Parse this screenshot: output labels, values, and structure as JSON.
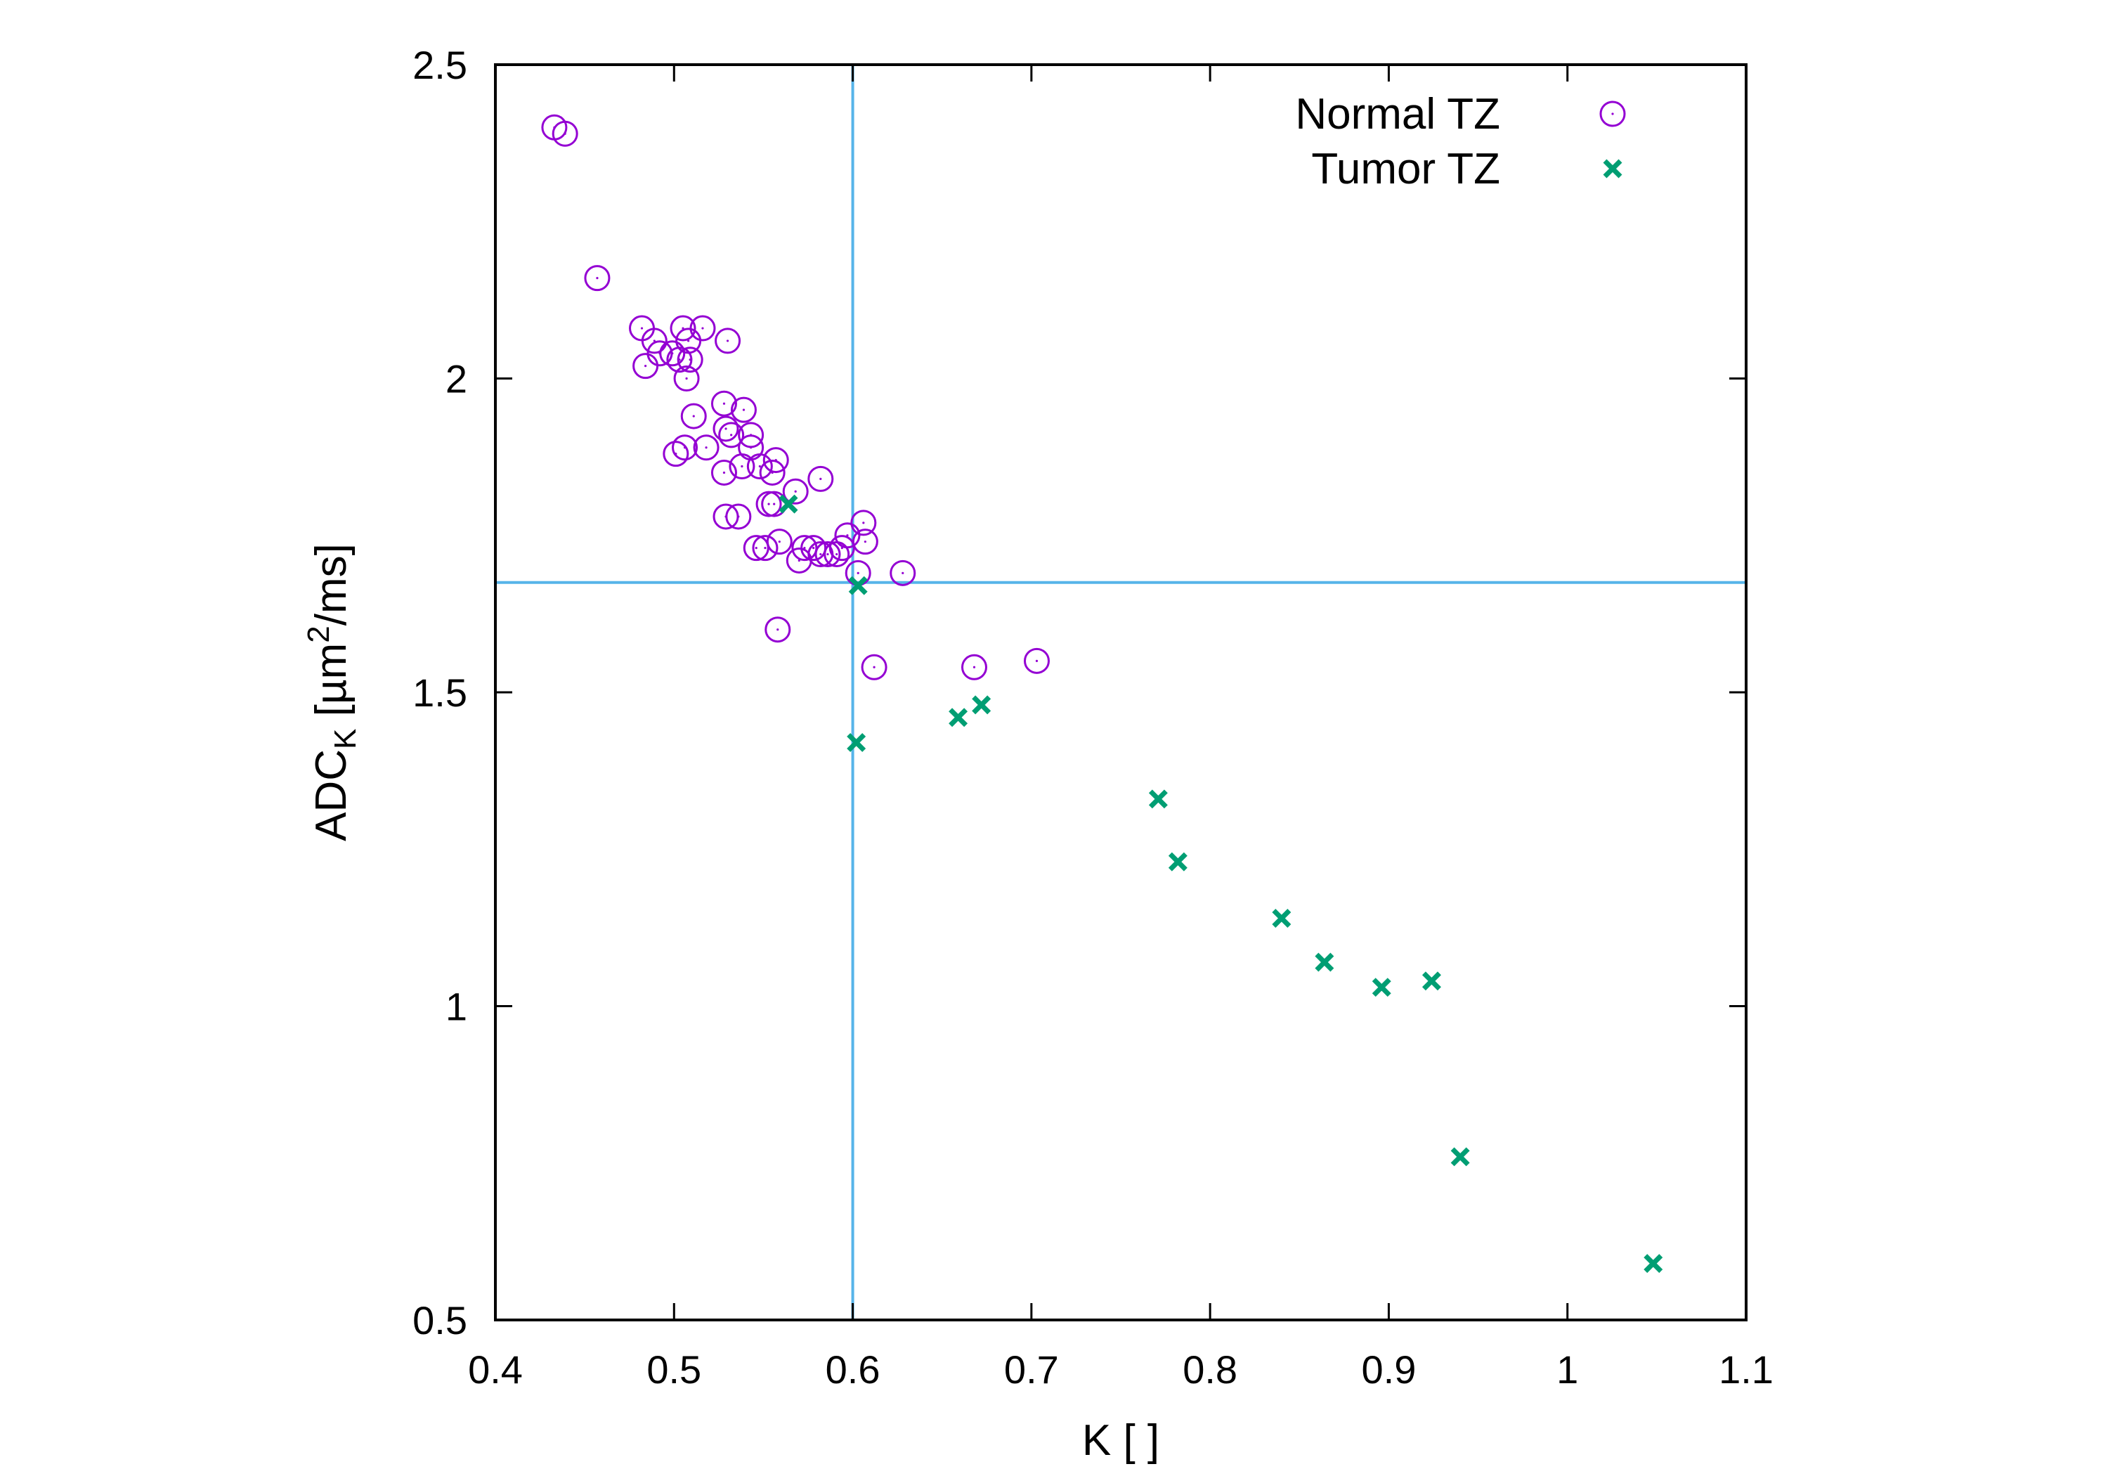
{
  "chart_data": {
    "type": "scatter",
    "xlabel": "K [ ]",
    "ylabel": {
      "base": "ADC",
      "sub": "K",
      "unit_pre": " [µm",
      "sup": "2",
      "unit_post": "/ms]"
    },
    "xlim": [
      0.4,
      1.1
    ],
    "ylim": [
      0.5,
      2.5
    ],
    "xticks": [
      0.4,
      0.5,
      0.6,
      0.7,
      0.8,
      0.9,
      1,
      1.1
    ],
    "yticks": [
      0.5,
      1,
      1.5,
      2,
      2.5
    ],
    "xtick_labels": [
      "0.4",
      "0.5",
      "0.6",
      "0.7",
      "0.8",
      "0.9",
      "1",
      "1.1"
    ],
    "ytick_labels": [
      "0.5",
      "1",
      "1.5",
      "2",
      "2.5"
    ],
    "grid": false,
    "legend_position": "top-right",
    "reference_lines": {
      "x": 0.6,
      "y": 1.675,
      "color": "#56b4e9"
    },
    "series": [
      {
        "name": "Normal TZ",
        "marker": "circle",
        "color": "#9400d3",
        "points": [
          [
            0.433,
            2.4
          ],
          [
            0.439,
            2.39
          ],
          [
            0.457,
            2.16
          ],
          [
            0.482,
            2.08
          ],
          [
            0.484,
            2.02
          ],
          [
            0.489,
            2.06
          ],
          [
            0.492,
            2.04
          ],
          [
            0.499,
            2.04
          ],
          [
            0.503,
            2.03
          ],
          [
            0.505,
            2.08
          ],
          [
            0.507,
            2.0
          ],
          [
            0.508,
            2.06
          ],
          [
            0.509,
            2.03
          ],
          [
            0.516,
            2.08
          ],
          [
            0.53,
            2.06
          ],
          [
            0.501,
            1.88
          ],
          [
            0.506,
            1.89
          ],
          [
            0.511,
            1.94
          ],
          [
            0.518,
            1.89
          ],
          [
            0.528,
            1.96
          ],
          [
            0.529,
            1.92
          ],
          [
            0.532,
            1.91
          ],
          [
            0.539,
            1.95
          ],
          [
            0.543,
            1.91
          ],
          [
            0.543,
            1.89
          ],
          [
            0.528,
            1.85
          ],
          [
            0.538,
            1.86
          ],
          [
            0.548,
            1.86
          ],
          [
            0.555,
            1.85
          ],
          [
            0.557,
            1.87
          ],
          [
            0.568,
            1.82
          ],
          [
            0.582,
            1.84
          ],
          [
            0.529,
            1.78
          ],
          [
            0.536,
            1.78
          ],
          [
            0.553,
            1.8
          ],
          [
            0.556,
            1.8
          ],
          [
            0.546,
            1.73
          ],
          [
            0.551,
            1.73
          ],
          [
            0.559,
            1.74
          ],
          [
            0.57,
            1.71
          ],
          [
            0.573,
            1.73
          ],
          [
            0.578,
            1.73
          ],
          [
            0.582,
            1.72
          ],
          [
            0.586,
            1.72
          ],
          [
            0.591,
            1.72
          ],
          [
            0.594,
            1.73
          ],
          [
            0.597,
            1.75
          ],
          [
            0.606,
            1.77
          ],
          [
            0.607,
            1.74
          ],
          [
            0.603,
            1.69
          ],
          [
            0.628,
            1.69
          ],
          [
            0.558,
            1.6
          ],
          [
            0.612,
            1.54
          ],
          [
            0.668,
            1.54
          ],
          [
            0.703,
            1.55
          ]
        ]
      },
      {
        "name": "Tumor TZ",
        "marker": "x",
        "color": "#009e73",
        "points": [
          [
            0.564,
            1.8
          ],
          [
            0.603,
            1.67
          ],
          [
            0.602,
            1.42
          ],
          [
            0.659,
            1.46
          ],
          [
            0.672,
            1.48
          ],
          [
            0.771,
            1.33
          ],
          [
            0.782,
            1.23
          ],
          [
            0.84,
            1.14
          ],
          [
            0.864,
            1.07
          ],
          [
            0.896,
            1.03
          ],
          [
            0.924,
            1.04
          ],
          [
            0.94,
            0.76
          ],
          [
            1.048,
            0.59
          ]
        ]
      }
    ]
  }
}
